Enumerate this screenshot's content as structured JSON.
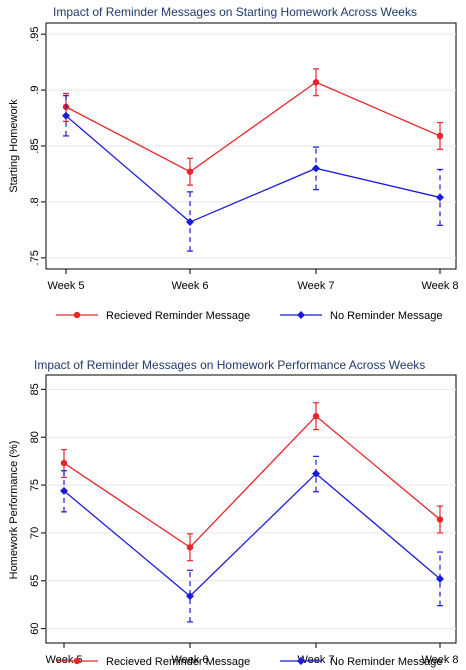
{
  "chart_data": [
    {
      "type": "line",
      "title": "Impact of Reminder Messages on Starting Homework Across Weeks",
      "xlabel": "",
      "ylabel": "Starting Homework",
      "categories": [
        "Week 5",
        "Week 6",
        "Week 7",
        "Week 8"
      ],
      "ylim": [
        0.74,
        0.96
      ],
      "y_ticks": [
        0.75,
        0.8,
        0.85,
        0.9,
        0.95
      ],
      "y_tick_labels": [
        ".75",
        ".8",
        ".85",
        ".9",
        ".95"
      ],
      "grid": "horizontal",
      "legend_position": "bottom",
      "series": [
        {
          "name": "Recieved Reminder Message",
          "color": "#e8262a",
          "line_style": "solid",
          "values": [
            0.885,
            0.827,
            0.907,
            0.859
          ],
          "ci_lower": [
            0.872,
            0.815,
            0.895,
            0.847
          ],
          "ci_upper": [
            0.897,
            0.839,
            0.919,
            0.871
          ]
        },
        {
          "name": "No Reminder Message",
          "color": "#1a1adc",
          "line_style": "solid",
          "error_bar_style": "dashed",
          "values": [
            0.877,
            0.782,
            0.83,
            0.804
          ],
          "ci_lower": [
            0.859,
            0.756,
            0.811,
            0.779
          ],
          "ci_upper": [
            0.895,
            0.809,
            0.849,
            0.829
          ]
        }
      ]
    },
    {
      "type": "line",
      "title": "Impact of Reminder Messages on Homework Performance Across Weeks",
      "xlabel": "",
      "ylabel": "Homework Performance (%)",
      "categories": [
        "Week 5",
        "Week 6",
        "Week 7",
        "Week 8"
      ],
      "ylim": [
        58.5,
        86.5
      ],
      "y_ticks": [
        60,
        65,
        70,
        75,
        80,
        85
      ],
      "y_tick_labels": [
        "60",
        "65",
        "70",
        "75",
        "80",
        "85"
      ],
      "grid": "horizontal",
      "legend_position": "bottom",
      "series": [
        {
          "name": "Recieved Reminder Message",
          "color": "#e8262a",
          "line_style": "solid",
          "values": [
            77.3,
            68.5,
            82.2,
            71.4
          ],
          "ci_lower": [
            75.8,
            67.1,
            80.8,
            70.0
          ],
          "ci_upper": [
            78.7,
            69.9,
            83.6,
            72.8
          ]
        },
        {
          "name": "No Reminder Message",
          "color": "#1a1adc",
          "line_style": "solid",
          "error_bar_style": "dashed",
          "values": [
            74.4,
            63.4,
            76.2,
            65.2
          ],
          "ci_lower": [
            72.2,
            60.7,
            74.3,
            62.4
          ],
          "ci_upper": [
            76.5,
            66.1,
            78.0,
            68.0
          ]
        }
      ]
    }
  ]
}
